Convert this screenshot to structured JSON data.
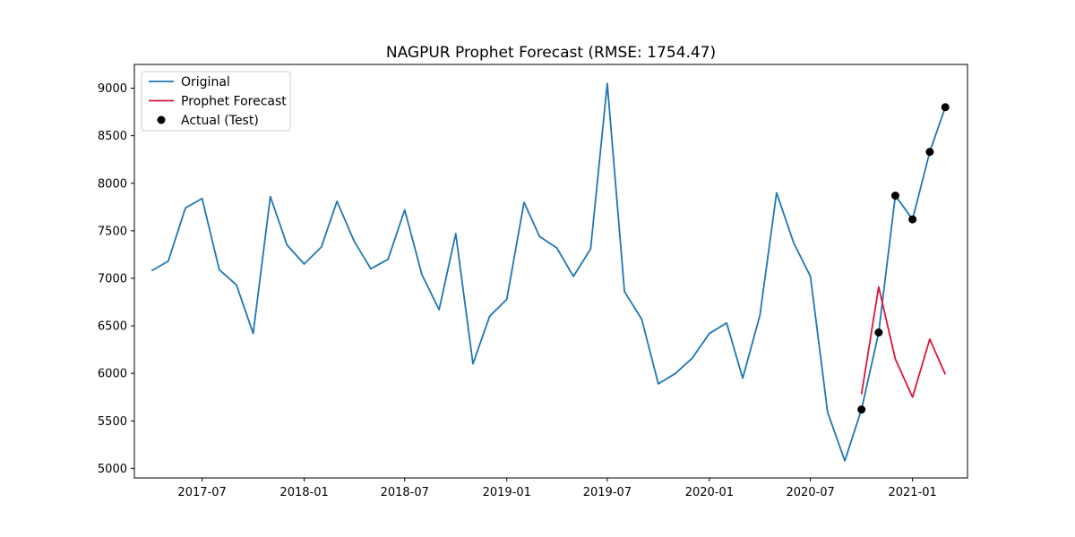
{
  "chart_data": {
    "type": "line",
    "title": "NAGPUR Prophet Forecast (RMSE: 1754.47)",
    "xlabel": "",
    "ylabel": "",
    "x_axis_type": "date",
    "xlim": [
      "2017-03-01",
      "2021-04-10"
    ],
    "ylim": [
      4900,
      9250
    ],
    "x_ticks": [
      {
        "date": "2017-07-01",
        "label": "2017-07"
      },
      {
        "date": "2018-01-01",
        "label": "2018-01"
      },
      {
        "date": "2018-07-01",
        "label": "2018-07"
      },
      {
        "date": "2019-01-01",
        "label": "2019-01"
      },
      {
        "date": "2019-07-01",
        "label": "2019-07"
      },
      {
        "date": "2020-01-01",
        "label": "2020-01"
      },
      {
        "date": "2020-07-01",
        "label": "2020-07"
      },
      {
        "date": "2021-01-01",
        "label": "2021-01"
      }
    ],
    "y_ticks": [
      5000,
      5500,
      6000,
      6500,
      7000,
      7500,
      8000,
      8500,
      9000
    ],
    "grid": false,
    "legend_position": "top-left",
    "series": [
      {
        "name": "Original",
        "kind": "line",
        "color": "#1f77b4",
        "x": [
          "2017-04-01",
          "2017-05-01",
          "2017-06-01",
          "2017-07-01",
          "2017-08-01",
          "2017-09-01",
          "2017-10-01",
          "2017-11-01",
          "2017-12-01",
          "2018-01-01",
          "2018-02-01",
          "2018-03-01",
          "2018-04-01",
          "2018-05-01",
          "2018-06-01",
          "2018-07-01",
          "2018-08-01",
          "2018-09-01",
          "2018-10-01",
          "2018-11-01",
          "2018-12-01",
          "2019-01-01",
          "2019-02-01",
          "2019-03-01",
          "2019-04-01",
          "2019-05-01",
          "2019-06-01",
          "2019-07-01",
          "2019-08-01",
          "2019-09-01",
          "2019-10-01",
          "2019-11-01",
          "2019-12-01",
          "2020-01-01",
          "2020-02-01",
          "2020-03-01",
          "2020-04-01",
          "2020-05-01",
          "2020-06-01",
          "2020-07-01",
          "2020-08-01",
          "2020-09-01",
          "2020-10-01",
          "2020-11-01",
          "2020-12-01",
          "2021-01-01",
          "2021-02-01",
          "2021-03-01"
        ],
        "y": [
          7080,
          7180,
          7740,
          7840,
          7090,
          6930,
          6420,
          7860,
          7350,
          7150,
          7330,
          7810,
          7390,
          7100,
          7200,
          7720,
          7040,
          6670,
          7470,
          6100,
          6600,
          6780,
          7800,
          7440,
          7320,
          7020,
          7310,
          9050,
          6860,
          6570,
          5890,
          6000,
          6160,
          6420,
          6530,
          5950,
          6610,
          7900,
          7370,
          7020,
          5590,
          5080,
          5620,
          6430,
          7870,
          7620,
          8330,
          8800
        ]
      },
      {
        "name": "Prophet Forecast",
        "kind": "line",
        "color": "#dc143c",
        "x": [
          "2020-10-01",
          "2020-11-01",
          "2020-12-01",
          "2021-01-01",
          "2021-02-01",
          "2021-03-01"
        ],
        "y": [
          5780,
          6910,
          6150,
          5750,
          6360,
          5990
        ]
      },
      {
        "name": "Actual (Test)",
        "kind": "scatter",
        "color": "#000000",
        "x": [
          "2020-10-01",
          "2020-11-01",
          "2020-12-01",
          "2021-01-01",
          "2021-02-01",
          "2021-03-01"
        ],
        "y": [
          5620,
          6430,
          7870,
          7620,
          8330,
          8800
        ]
      }
    ]
  }
}
